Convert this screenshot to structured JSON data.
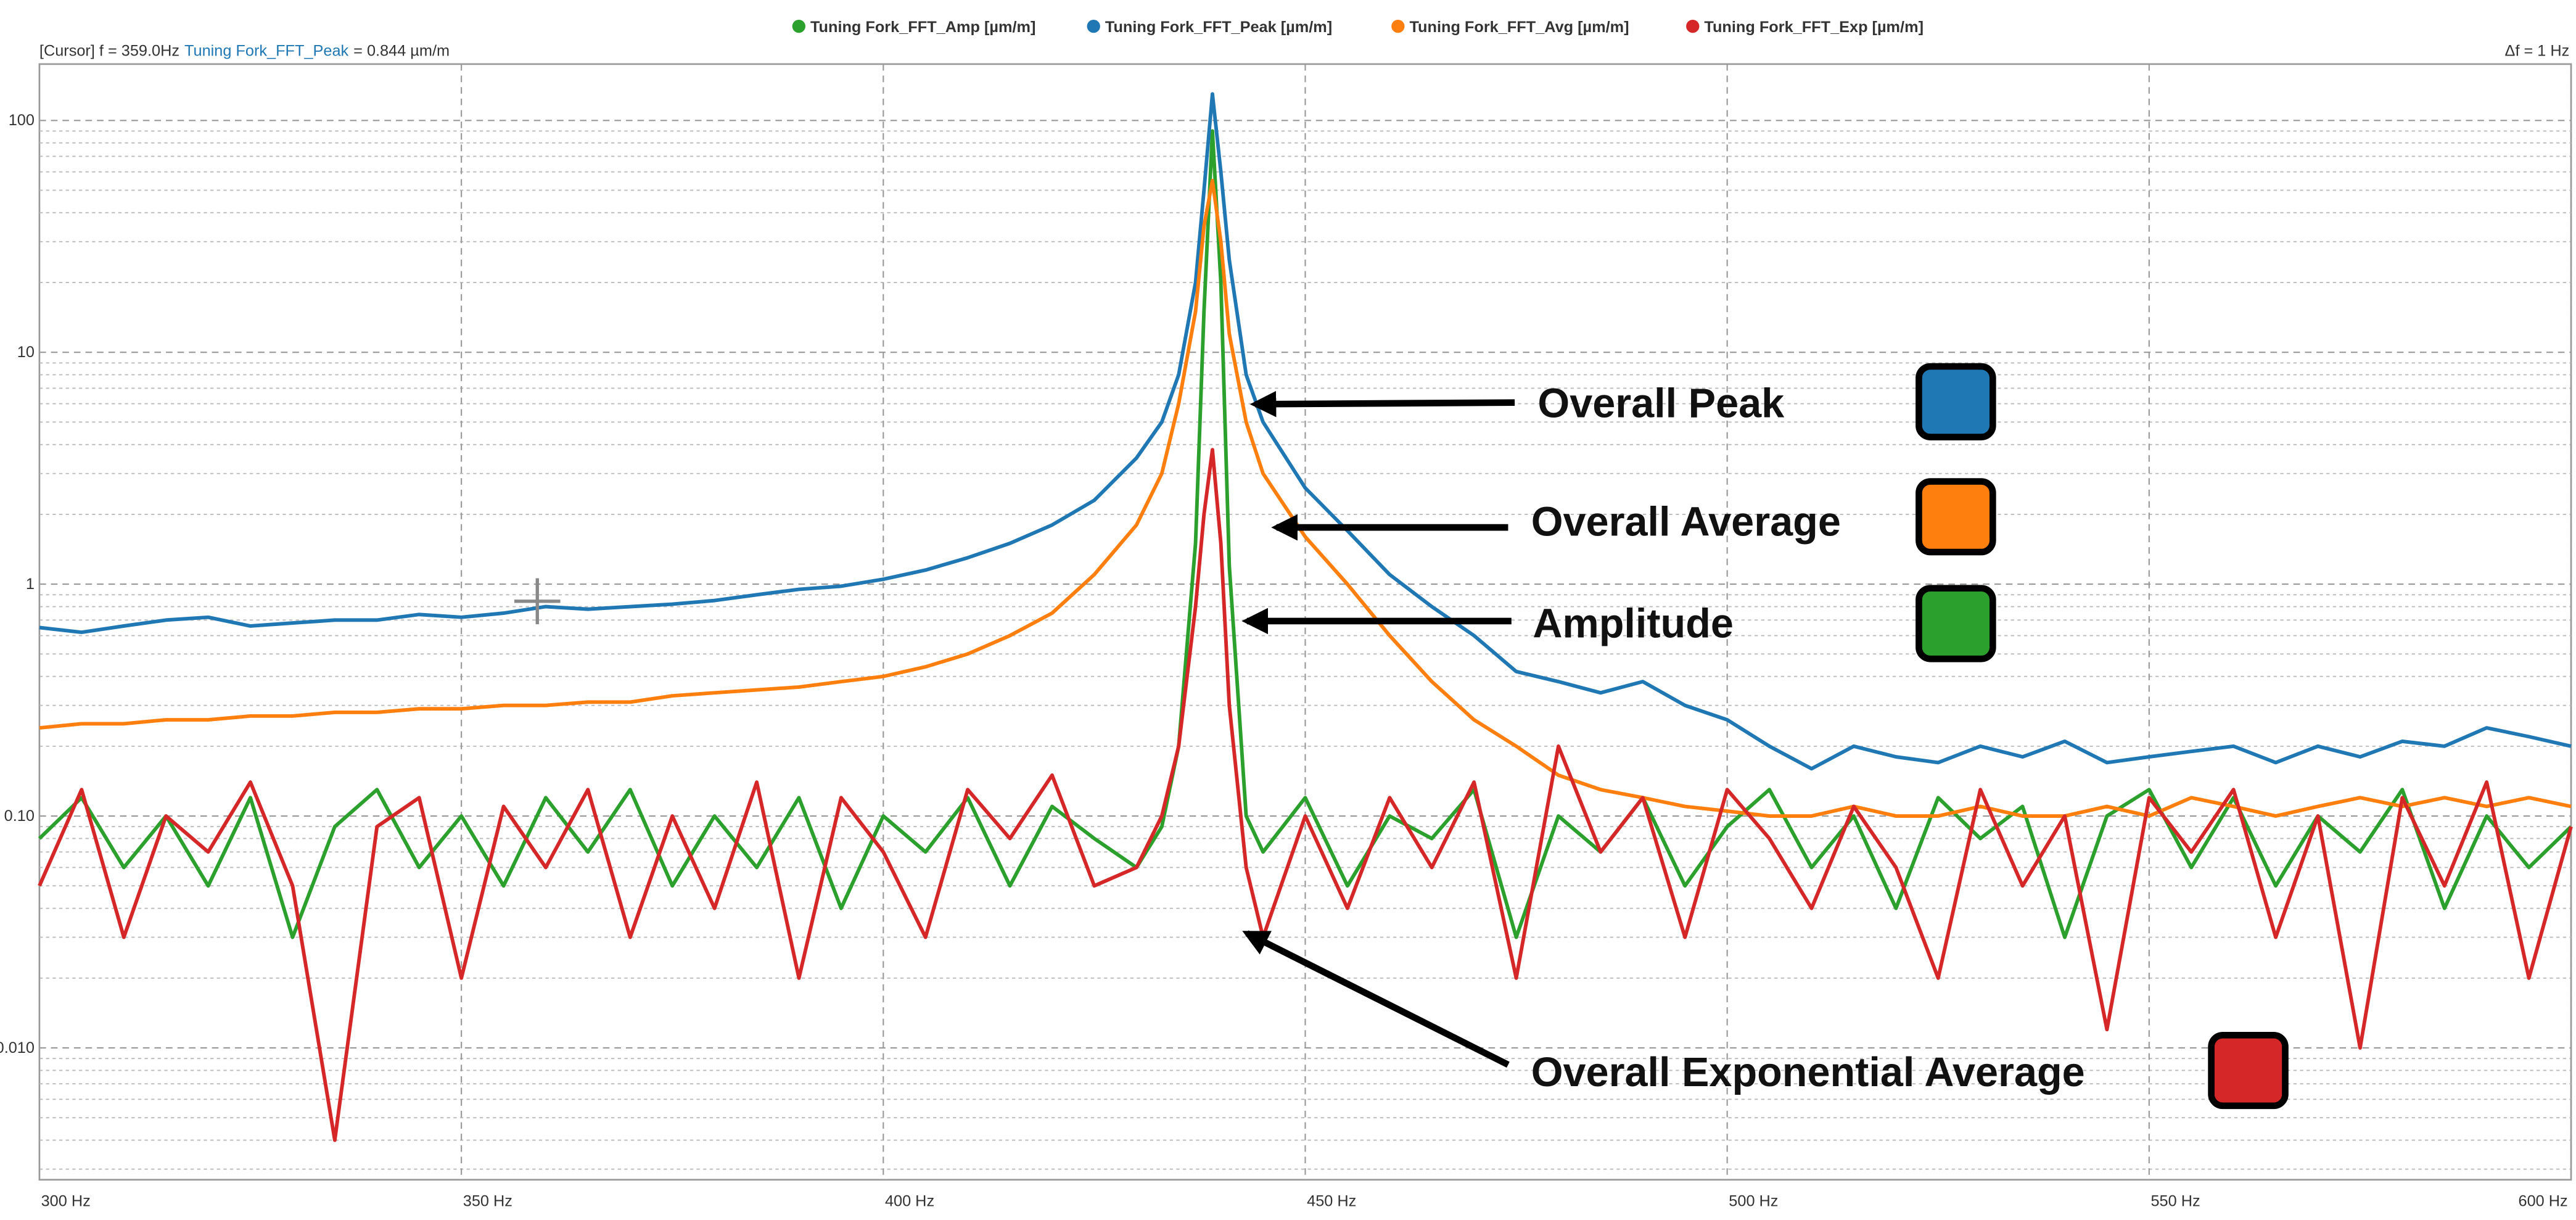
{
  "chart_data": {
    "type": "line",
    "legend": [
      "Tuning Fork_FFT_Amp [µm/m]",
      "Tuning Fork_FFT_Peak [µm/m]",
      "Tuning Fork_FFT_Avg [µm/m]",
      "Tuning Fork_FFT_Exp [µm/m]"
    ],
    "cursor": {
      "label": "[Cursor] f = 359.0Hz",
      "series": "Tuning Fork_FFT_Peak",
      "value_label": "= 0.844 µm/m",
      "x": 359.0,
      "y": 0.844
    },
    "resolution": "Δf = 1 Hz",
    "x": [
      300,
      305,
      310,
      315,
      320,
      325,
      330,
      335,
      340,
      345,
      350,
      355,
      360,
      365,
      370,
      375,
      380,
      385,
      390,
      395,
      400,
      405,
      410,
      415,
      420,
      425,
      430,
      433,
      435,
      437,
      438,
      439,
      440,
      441,
      443,
      445,
      450,
      455,
      460,
      465,
      470,
      475,
      480,
      485,
      490,
      495,
      500,
      505,
      510,
      515,
      520,
      525,
      530,
      535,
      540,
      545,
      550,
      555,
      560,
      565,
      570,
      575,
      580,
      585,
      590,
      595,
      600
    ],
    "series": [
      {
        "name": "Tuning Fork_FFT_Amp [µm/m]",
        "color": "#2ca02c",
        "values": [
          0.08,
          0.12,
          0.06,
          0.1,
          0.05,
          0.12,
          0.03,
          0.09,
          0.13,
          0.06,
          0.1,
          0.05,
          0.12,
          0.07,
          0.13,
          0.05,
          0.1,
          0.06,
          0.12,
          0.04,
          0.1,
          0.07,
          0.12,
          0.05,
          0.11,
          0.08,
          0.06,
          0.09,
          0.2,
          1.5,
          15,
          90,
          20,
          1.2,
          0.1,
          0.07,
          0.12,
          0.05,
          0.1,
          0.08,
          0.13,
          0.03,
          0.1,
          0.07,
          0.12,
          0.05,
          0.09,
          0.13,
          0.06,
          0.1,
          0.04,
          0.12,
          0.08,
          0.11,
          0.03,
          0.1,
          0.13,
          0.06,
          0.12,
          0.05,
          0.1,
          0.07,
          0.13,
          0.04,
          0.1,
          0.06,
          0.09
        ]
      },
      {
        "name": "Tuning Fork_FFT_Peak [µm/m]",
        "color": "#1f77b4",
        "values": [
          0.65,
          0.62,
          0.66,
          0.7,
          0.72,
          0.66,
          0.68,
          0.7,
          0.7,
          0.74,
          0.72,
          0.75,
          0.8,
          0.78,
          0.8,
          0.82,
          0.85,
          0.9,
          0.95,
          0.98,
          1.05,
          1.15,
          1.3,
          1.5,
          1.8,
          2.3,
          3.5,
          5,
          8,
          20,
          50,
          130,
          60,
          25,
          8,
          5,
          2.6,
          1.7,
          1.1,
          0.8,
          0.6,
          0.42,
          0.38,
          0.34,
          0.38,
          0.3,
          0.26,
          0.2,
          0.16,
          0.2,
          0.18,
          0.17,
          0.2,
          0.18,
          0.21,
          0.17,
          0.18,
          0.19,
          0.2,
          0.17,
          0.2,
          0.18,
          0.21,
          0.2,
          0.24,
          0.22,
          0.2
        ]
      },
      {
        "name": "Tuning Fork_FFT_Avg [µm/m]",
        "color": "#ff7f0e",
        "values": [
          0.24,
          0.25,
          0.25,
          0.26,
          0.26,
          0.27,
          0.27,
          0.28,
          0.28,
          0.29,
          0.29,
          0.3,
          0.3,
          0.31,
          0.31,
          0.33,
          0.34,
          0.35,
          0.36,
          0.38,
          0.4,
          0.44,
          0.5,
          0.6,
          0.75,
          1.1,
          1.8,
          3,
          6,
          15,
          35,
          55,
          30,
          12,
          5,
          3,
          1.6,
          1.0,
          0.6,
          0.38,
          0.26,
          0.2,
          0.15,
          0.13,
          0.12,
          0.11,
          0.105,
          0.1,
          0.1,
          0.11,
          0.1,
          0.1,
          0.11,
          0.1,
          0.1,
          0.11,
          0.1,
          0.12,
          0.11,
          0.1,
          0.11,
          0.12,
          0.11,
          0.12,
          0.11,
          0.12,
          0.11
        ]
      },
      {
        "name": "Tuning Fork_FFT_Exp [µm/m]",
        "color": "#d62728",
        "values": [
          0.05,
          0.13,
          0.03,
          0.1,
          0.07,
          0.14,
          0.05,
          0.004,
          0.09,
          0.12,
          0.02,
          0.11,
          0.06,
          0.13,
          0.03,
          0.1,
          0.04,
          0.14,
          0.02,
          0.12,
          0.07,
          0.03,
          0.13,
          0.08,
          0.15,
          0.05,
          0.06,
          0.1,
          0.2,
          0.8,
          2,
          3.8,
          1.5,
          0.3,
          0.06,
          0.03,
          0.1,
          0.04,
          0.12,
          0.06,
          0.14,
          0.02,
          0.2,
          0.07,
          0.12,
          0.03,
          0.13,
          0.08,
          0.04,
          0.11,
          0.06,
          0.02,
          0.13,
          0.05,
          0.1,
          0.012,
          0.12,
          0.07,
          0.13,
          0.03,
          0.1,
          0.01,
          0.12,
          0.05,
          0.14,
          0.02,
          0.09
        ]
      }
    ],
    "xlim": [
      300,
      600
    ],
    "xticks": [
      {
        "value": 300,
        "label": "300 Hz"
      },
      {
        "value": 350,
        "label": "350 Hz"
      },
      {
        "value": 400,
        "label": "400 Hz"
      },
      {
        "value": 450,
        "label": "450 Hz"
      },
      {
        "value": 500,
        "label": "500 Hz"
      },
      {
        "value": 550,
        "label": "550 Hz"
      },
      {
        "value": 600,
        "label": "600 Hz"
      }
    ],
    "ylim": [
      0.0027,
      175
    ],
    "yscale": "log",
    "yticks": [
      {
        "value": 0.01,
        "label": "0.010"
      },
      {
        "value": 0.1,
        "label": "0.10"
      },
      1,
      10,
      100
    ],
    "yminorticks": [
      0.003,
      0.004,
      0.005,
      0.006,
      0.007,
      0.008,
      0.009,
      0.02,
      0.03,
      0.04,
      0.05,
      0.06,
      0.07,
      0.08,
      0.09,
      0.2,
      0.3,
      0.4,
      0.5,
      0.6,
      0.7,
      0.8,
      0.9,
      2,
      3,
      4,
      5,
      6,
      7,
      8,
      9,
      20,
      30,
      40,
      50,
      60,
      70,
      80,
      90
    ],
    "grid": true,
    "annotations": [
      {
        "text": "Overall Peak",
        "color": "#1f77b4"
      },
      {
        "text": "Overall Average",
        "color": "#ff7f0e"
      },
      {
        "text": "Amplitude",
        "color": "#2ca02c"
      },
      {
        "text": "Overall Exponential Average",
        "color": "#d62728"
      }
    ]
  }
}
